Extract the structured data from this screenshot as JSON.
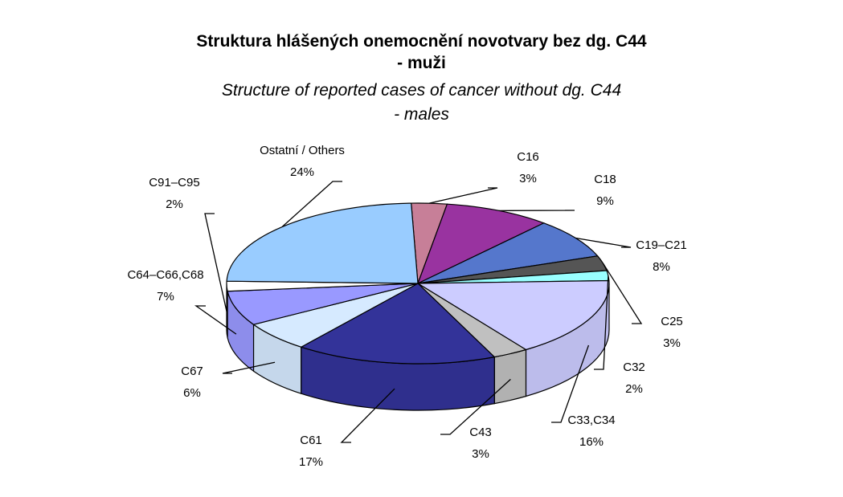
{
  "chart_data": {
    "type": "pie",
    "title": "Struktura hlášených onemocnění novotvary bez dg. C44",
    "title_line2": "- muži",
    "subtitle": "Structure of reported cases of cancer without dg. C44",
    "subtitle_line2": "- males",
    "legend": "none",
    "slices": [
      {
        "label": "C16",
        "value": 3,
        "value_label": "3%",
        "color": "#c77f98"
      },
      {
        "label": "C18",
        "value": 9,
        "value_label": "9%",
        "color": "#9933a0"
      },
      {
        "label": "C19–C21",
        "value": 8,
        "value_label": "8%",
        "color": "#5577cc"
      },
      {
        "label": "C25",
        "value": 3,
        "value_label": "3%",
        "color": "#555555"
      },
      {
        "label": "C32",
        "value": 2,
        "value_label": "2%",
        "color": "#99ffff"
      },
      {
        "label": "C33,C34",
        "value": 16,
        "value_label": "16%",
        "color": "#ccccff"
      },
      {
        "label": "C43",
        "value": 3,
        "value_label": "3%",
        "color": "#c0c0c0"
      },
      {
        "label": "C61",
        "value": 17,
        "value_label": "17%",
        "color": "#333399"
      },
      {
        "label": "C67",
        "value": 6,
        "value_label": "6%",
        "color": "#d6eaff"
      },
      {
        "label": "C64–C66,C68",
        "value": 7,
        "value_label": "7%",
        "color": "#9999ff"
      },
      {
        "label": "C91–C95",
        "value": 2,
        "value_label": "2%",
        "color": "#ffffff"
      },
      {
        "label": "Ostatní / Others",
        "value": 24,
        "value_label": "24%",
        "color": "#99ccff"
      }
    ]
  }
}
